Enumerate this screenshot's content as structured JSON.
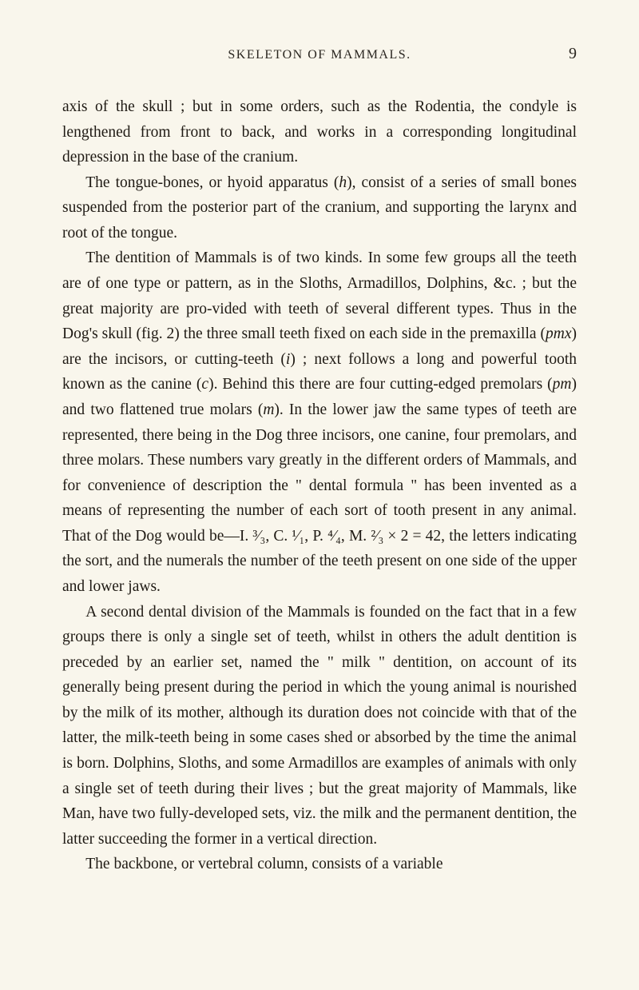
{
  "header": {
    "title": "SKELETON OF MAMMALS.",
    "page_number": "9"
  },
  "paragraphs": {
    "p1": "axis of the skull ; but in some orders, such as the Rodentia, the condyle is lengthened from front to back, and works in a corresponding longitudinal depression in the base of the cranium.",
    "p2_a": "The tongue-bones, or hyoid apparatus (",
    "p2_b": "h",
    "p2_c": "), consist of a series of small bones suspended from the posterior part of the cranium, and supporting the larynx and root of the tongue.",
    "p3_a": "The dentition of Mammals is of two kinds. In some few groups all the teeth are of one type or pattern, as in the Sloths, Armadillos, Dolphins, &c. ; but the great majority are pro-vided with teeth of several different types. Thus in the Dog's skull (fig. 2) the three small teeth fixed on each side in the premaxilla (",
    "p3_b": "pmx",
    "p3_c": ") are the incisors, or cutting-teeth (",
    "p3_d": "i",
    "p3_e": ") ; next follows a long and powerful tooth known as the canine (",
    "p3_f": "c",
    "p3_g": "). Behind this there are four cutting-edged premolars (",
    "p3_h": "pm",
    "p3_i": ") and two flattened true molars (",
    "p3_j": "m",
    "p3_k": "). In the lower jaw the same types of teeth are represented, there being in the Dog three incisors, one canine, four premolars, and three molars. These numbers vary greatly in the different orders of Mammals, and for convenience of description the \" dental formula \" has been invented as a means of representing the number of each sort of tooth present in any animal. That of the Dog would be—I. ³⁄₃, C. ¹⁄₁, P. ⁴⁄₄, M. ²⁄₃ × 2 = 42, the letters indicating the sort, and the numerals the number of the teeth present on one side of the upper and lower jaws.",
    "p4": "A second dental division of the Mammals is founded on the fact that in a few groups there is only a single set of teeth, whilst in others the adult dentition is preceded by an earlier set, named the \" milk \" dentition, on account of its generally being present during the period in which the young animal is nourished by the milk of its mother, although its duration does not coincide with that of the latter, the milk-teeth being in some cases shed or absorbed by the time the animal is born. Dolphins, Sloths, and some Armadillos are examples of animals with only a single set of teeth during their lives ; but the great majority of Mammals, like Man, have two fully-developed sets, viz. the milk and the permanent dentition, the latter succeeding the former in a vertical direction.",
    "p5": "The backbone, or vertebral column, consists of a variable"
  }
}
